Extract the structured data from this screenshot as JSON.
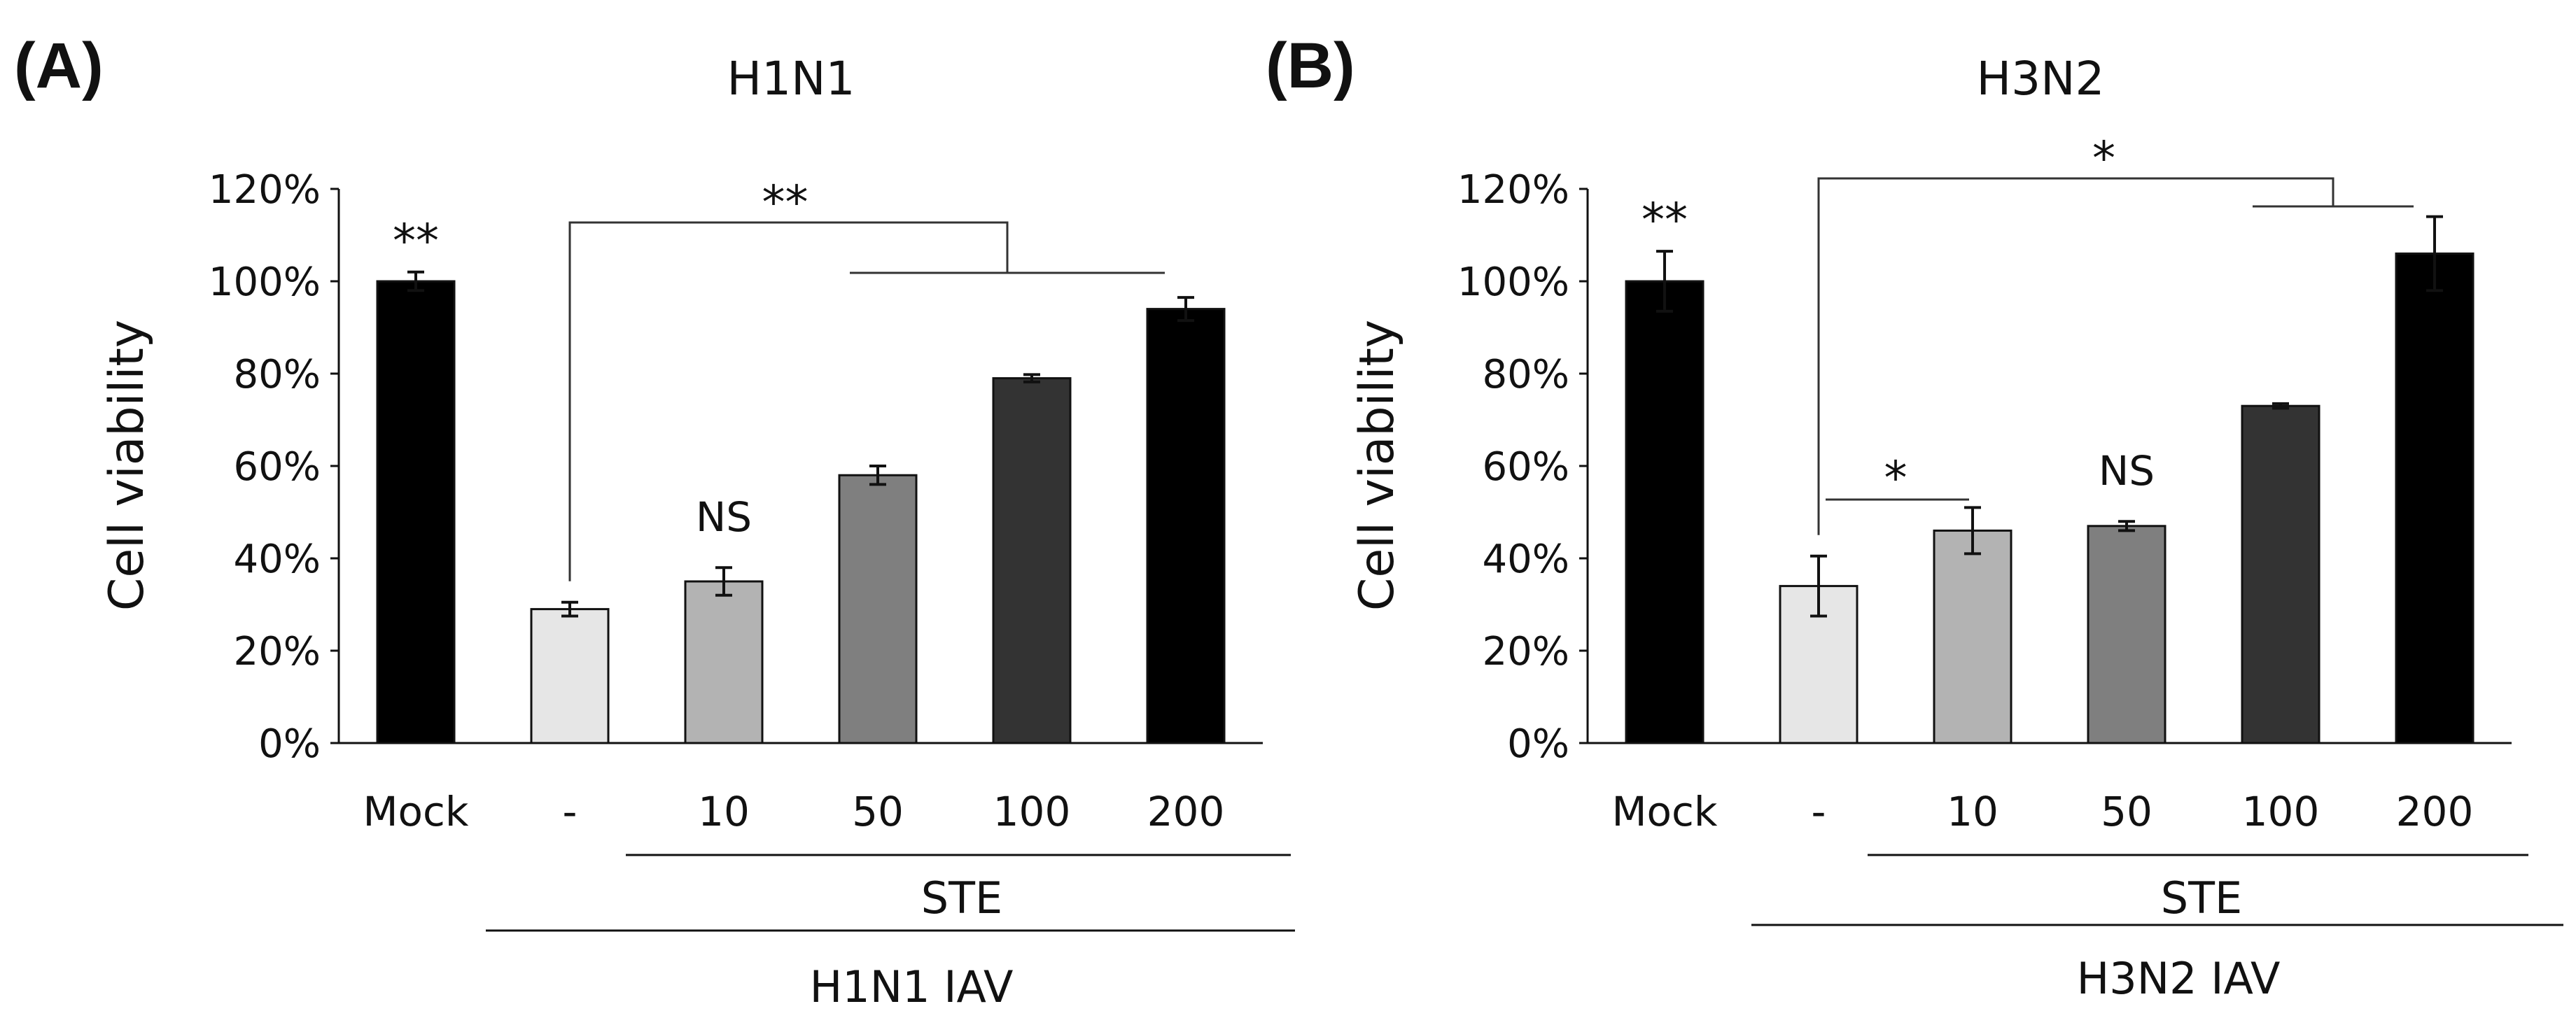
{
  "chart_data": [
    {
      "type": "bar",
      "panel_label": "(A)",
      "title": "H1N1",
      "ylabel": "Cell viability",
      "xlabel": "",
      "ylim": [
        0,
        1.2
      ],
      "yticks": [
        0,
        0.2,
        0.4,
        0.6,
        0.8,
        1.0,
        1.2
      ],
      "ytick_labels": [
        "0%",
        "20%",
        "40%",
        "60%",
        "80%",
        "100%",
        "120%"
      ],
      "categories": [
        "Mock",
        "-",
        "10",
        "50",
        "100",
        "200"
      ],
      "values": [
        1.0,
        0.29,
        0.35,
        0.58,
        0.79,
        0.94
      ],
      "errors": [
        0.02,
        0.015,
        0.03,
        0.02,
        0.008,
        0.025
      ],
      "colors": [
        "#000000",
        "#e6e6e6",
        "#b3b3b3",
        "#7f7f7f",
        "#333333",
        "#000000"
      ],
      "bar_annotations": [
        {
          "index": 0,
          "text": "**"
        },
        {
          "index": 2,
          "text": "NS"
        }
      ],
      "brackets": [
        {
          "from": 1,
          "to_group": [
            3,
            5
          ],
          "text": "**"
        }
      ],
      "group_labels": [
        {
          "from": 2,
          "to": 5,
          "text": "STE"
        },
        {
          "from": 1,
          "to": 5,
          "text": "H1N1  IAV"
        }
      ]
    },
    {
      "type": "bar",
      "panel_label": "(B)",
      "title": "H3N2",
      "ylabel": "Cell viability",
      "xlabel": "",
      "ylim": [
        0,
        1.2
      ],
      "yticks": [
        0,
        0.2,
        0.4,
        0.6,
        0.8,
        1.0,
        1.2
      ],
      "ytick_labels": [
        "0%",
        "20%",
        "40%",
        "60%",
        "80%",
        "100%",
        "120%"
      ],
      "categories": [
        "Mock",
        "-",
        "10",
        "50",
        "100",
        "200"
      ],
      "values": [
        1.0,
        0.34,
        0.46,
        0.47,
        0.73,
        1.06
      ],
      "errors": [
        0.065,
        0.065,
        0.05,
        0.01,
        0.005,
        0.08
      ],
      "colors": [
        "#000000",
        "#e6e6e6",
        "#b3b3b3",
        "#7f7f7f",
        "#333333",
        "#000000"
      ],
      "bar_annotations": [
        {
          "index": 0,
          "text": "**"
        },
        {
          "index": 3,
          "text": "NS"
        }
      ],
      "brackets": [
        {
          "from": 1,
          "to": 2,
          "text": "*"
        },
        {
          "from": 1,
          "to_group": [
            4,
            5
          ],
          "text": "*"
        }
      ],
      "group_labels": [
        {
          "from": 2,
          "to": 5,
          "text": "STE"
        },
        {
          "from": 1,
          "to": 5,
          "text": "H3N2  IAV"
        }
      ]
    }
  ]
}
